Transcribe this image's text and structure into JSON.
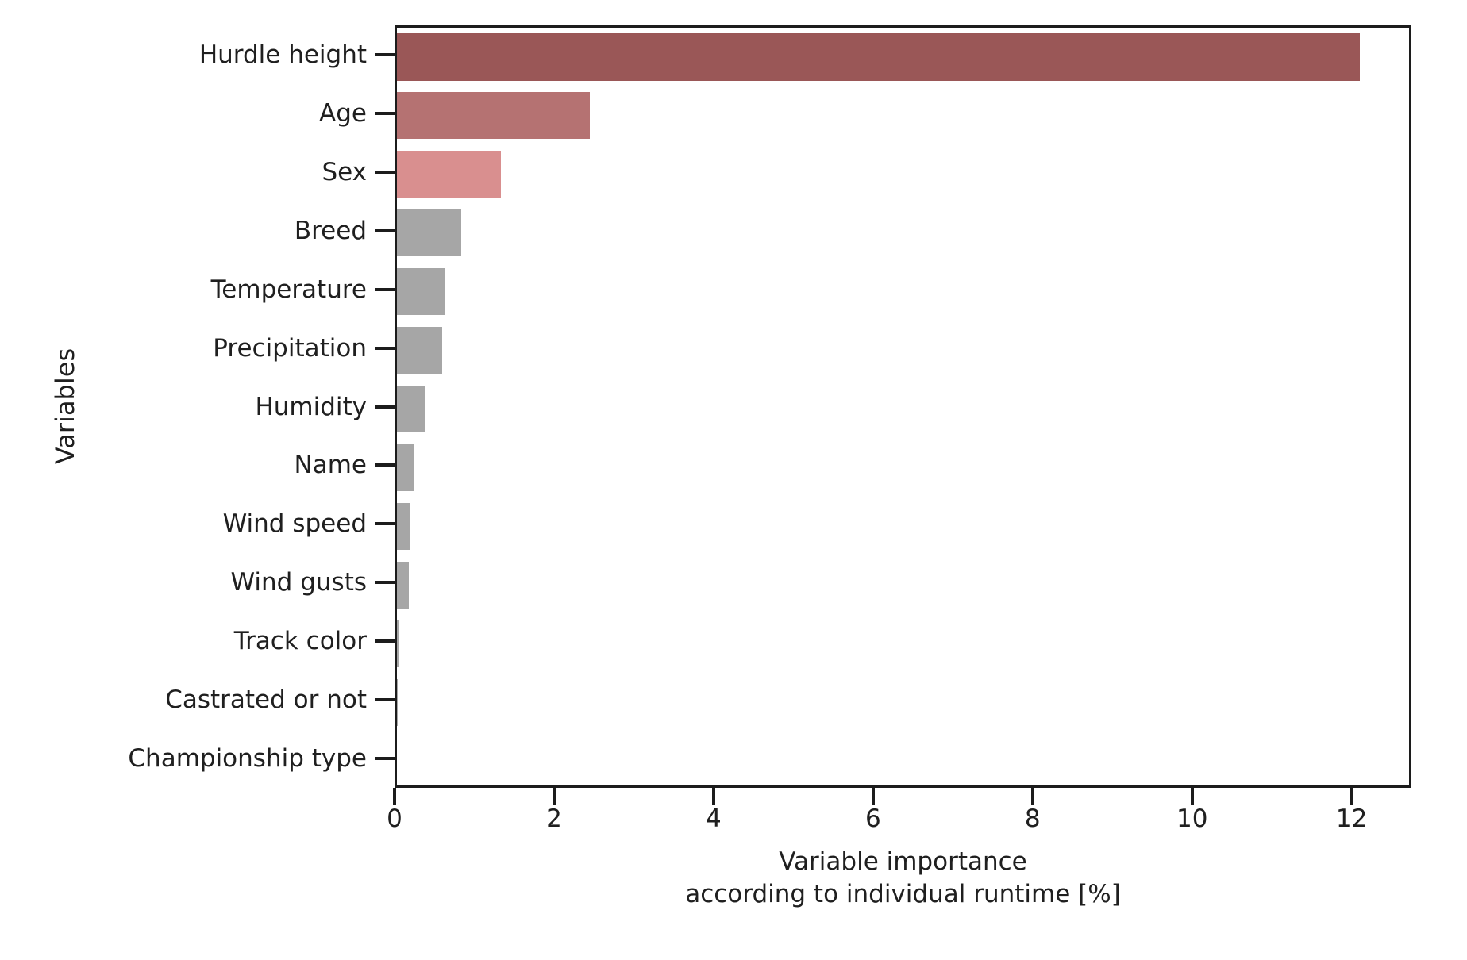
{
  "figure": {
    "background": "#ffffff",
    "text_color": "#1f1f1f",
    "spine_color": "#1c1c1c"
  },
  "chart_data": {
    "type": "bar",
    "orientation": "horizontal",
    "title": "",
    "xlabel": "Variable importance\naccording to individual runtime [%]",
    "xlabel_lines": [
      "Variable importance",
      "according to individual runtime [%]"
    ],
    "ylabel": "Variables",
    "categories": [
      "Hurdle height",
      "Age",
      "Sex",
      "Breed",
      "Temperature",
      "Precipitation",
      "Humidity",
      "Name",
      "Wind speed",
      "Wind gusts",
      "Track color",
      "Castrated or not",
      "Championship type"
    ],
    "values": [
      12.13,
      2.43,
      1.31,
      0.81,
      0.6,
      0.57,
      0.35,
      0.22,
      0.17,
      0.15,
      0.03,
      0.01,
      0.0
    ],
    "bar_colors": [
      "#9a5757",
      "#b57272",
      "#d98f8f",
      "#a6a6a6",
      "#a6a6a6",
      "#a6a6a6",
      "#a6a6a6",
      "#a6a6a6",
      "#a6a6a6",
      "#a6a6a6",
      "#a6a6a6",
      "#a6a6a6",
      "#a6a6a6"
    ],
    "xlim": [
      0,
      12.75
    ],
    "xticks": [
      0,
      2,
      4,
      6,
      8,
      10,
      12
    ],
    "grid": false,
    "legend": null
  }
}
